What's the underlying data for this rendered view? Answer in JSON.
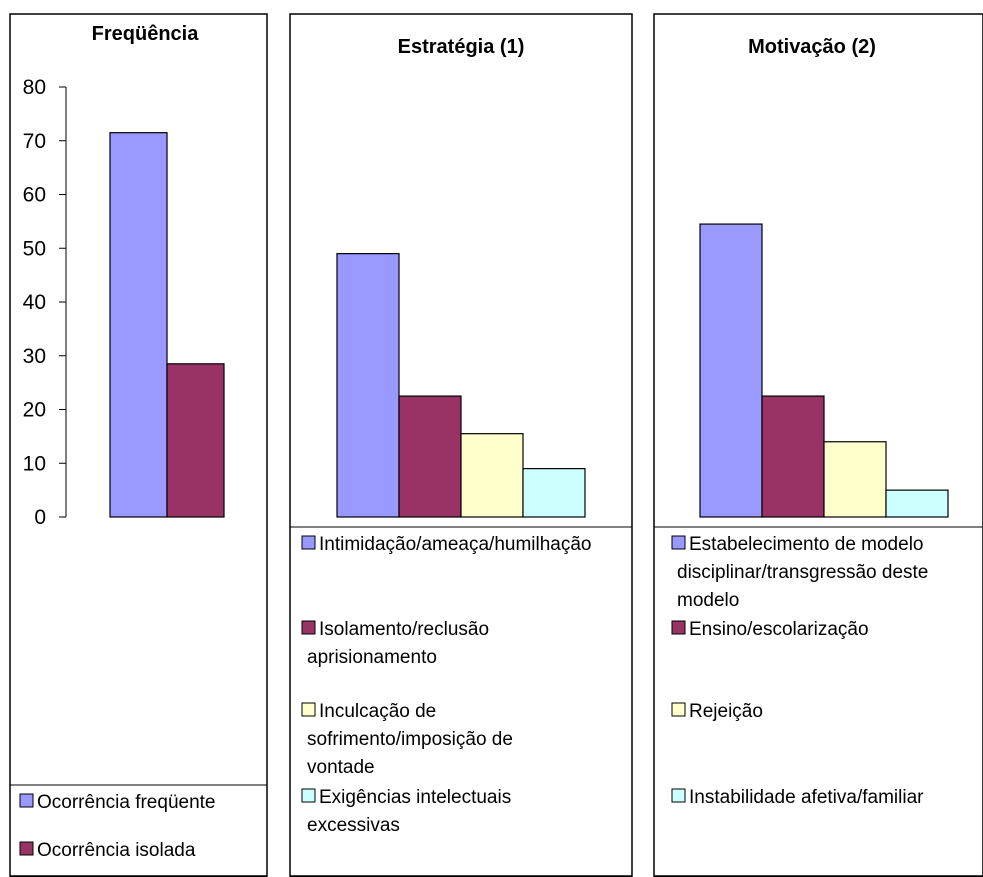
{
  "chart_data": [
    {
      "type": "bar",
      "title": "Freqüência",
      "ylim": [
        0,
        80
      ],
      "yticks": [
        "0",
        "10",
        "20",
        "30",
        "40",
        "50",
        "60",
        "70",
        "80"
      ],
      "series": [
        {
          "name": "Ocorrência freqüente",
          "value": 71.5,
          "color": "#9999ff"
        },
        {
          "name": "Ocorrência isolada",
          "value": 28.5,
          "color": "#993366"
        }
      ],
      "legend_placement": "bottom"
    },
    {
      "type": "bar",
      "title": "Estratégia (1)",
      "ylim": [
        0,
        80
      ],
      "series": [
        {
          "name": "Intimidação/ameaça/humilhação",
          "lines": [
            "Intimidação/ameaça/humilhação"
          ],
          "value": 49,
          "color": "#9999ff"
        },
        {
          "name": "Isolamento/reclusão aprisionamento",
          "lines": [
            "Isolamento/reclusão",
            "aprisionamento"
          ],
          "value": 22.5,
          "color": "#993366"
        },
        {
          "name": "Inculcação de sofrimento/imposição de vontade",
          "lines": [
            "Inculcação de",
            "sofrimento/imposição de",
            "vontade"
          ],
          "value": 15.5,
          "color": "#ffffcc"
        },
        {
          "name": "Exigências intelectuais excessivas",
          "lines": [
            "Exigências intelectuais",
            "excessivas"
          ],
          "value": 9,
          "color": "#ccffff"
        }
      ],
      "legend_placement": "bottom"
    },
    {
      "type": "bar",
      "title": "Motivação (2)",
      "ylim": [
        0,
        80
      ],
      "series": [
        {
          "name": "Estabelecimento de modelo disciplinar/transgressão deste modelo",
          "lines": [
            "Estabelecimento de modelo",
            "disciplinar/transgressão deste",
            "modelo"
          ],
          "value": 54.5,
          "color": "#9999ff"
        },
        {
          "name": "Ensino/escolarização",
          "lines": [
            "Ensino/escolarização"
          ],
          "value": 22.5,
          "color": "#993366"
        },
        {
          "name": "Rejeição",
          "lines": [
            "Rejeição"
          ],
          "value": 14,
          "color": "#ffffcc"
        },
        {
          "name": "Instabilidade afetiva/familiar",
          "lines": [
            "Instabilidade afetiva/familiar"
          ],
          "value": 5,
          "color": "#ccffff"
        }
      ],
      "legend_placement": "bottom"
    }
  ]
}
